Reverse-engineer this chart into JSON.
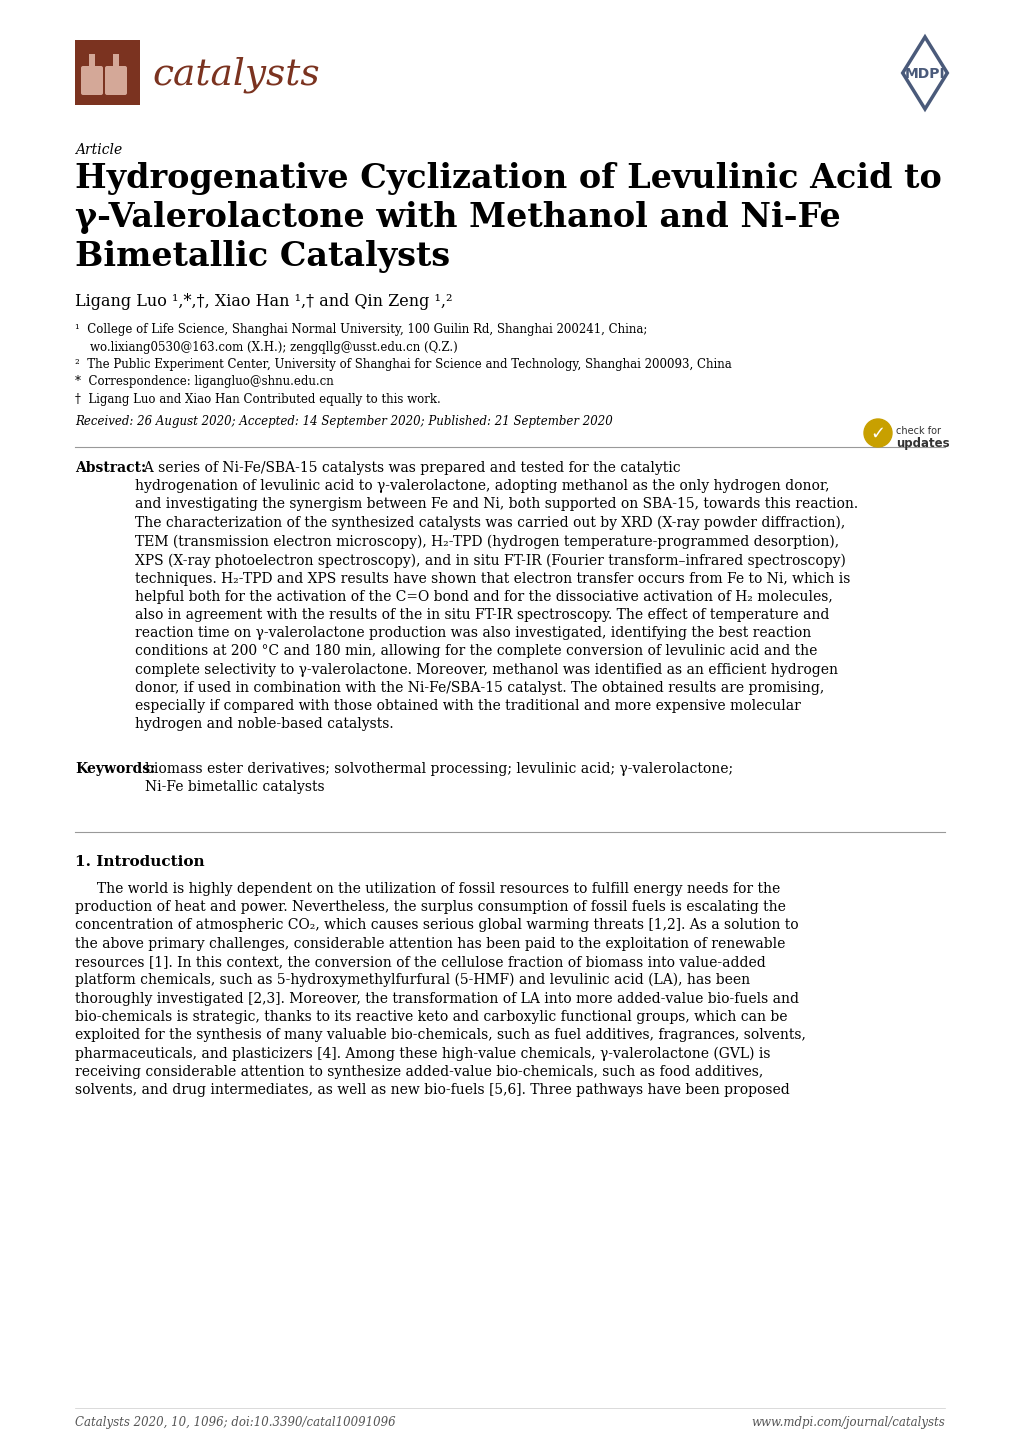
{
  "background_color": "#ffffff",
  "page_width": 10.2,
  "page_height": 14.42,
  "journal_color": "#7B3320",
  "mdpi_color": "#4A5A7A",
  "footer_left": "Catalysts 2020, 10, 1096; doi:10.3390/catal10091096",
  "footer_right": "www.mdpi.com/journal/catalysts"
}
